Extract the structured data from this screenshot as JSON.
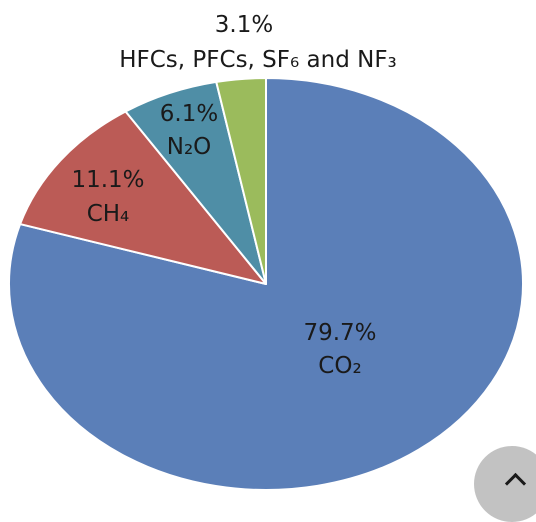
{
  "chart_data": {
    "type": "pie",
    "slices": [
      {
        "percent_label": "79.7%",
        "name": "CO₂",
        "value": 79.7,
        "color": "#5b7fb8"
      },
      {
        "percent_label": "11.1%",
        "name": "CH₄",
        "value": 11.1,
        "color": "#bb5b56"
      },
      {
        "percent_label": "6.1%",
        "name": "N₂O",
        "value": 6.1,
        "color": "#4f8ea6"
      },
      {
        "percent_label": "3.1%",
        "name": "HFCs, PFCs, SF₆ and NF₃",
        "value": 3.1,
        "color": "#9bbb5c"
      }
    ]
  },
  "scroll_top_button": {
    "icon": "chevron-up-icon"
  }
}
